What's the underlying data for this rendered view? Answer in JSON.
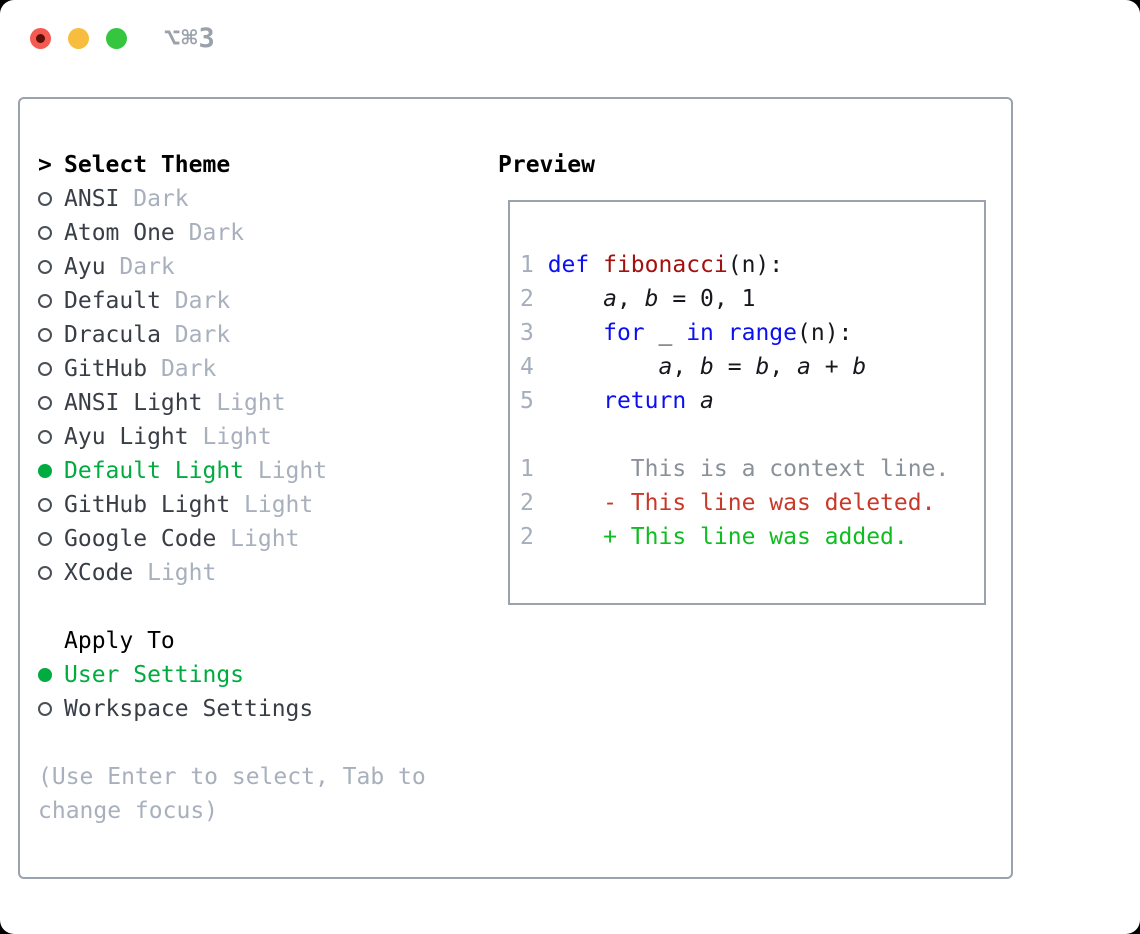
{
  "titlebar": {
    "shortcut": "⌥⌘3"
  },
  "theme_picker": {
    "title_prefix": ">",
    "title": "Select Theme",
    "themes": [
      {
        "name": "ANSI",
        "variant": "Dark",
        "selected": false
      },
      {
        "name": "Atom One",
        "variant": "Dark",
        "selected": false
      },
      {
        "name": "Ayu",
        "variant": "Dark",
        "selected": false
      },
      {
        "name": "Default",
        "variant": "Dark",
        "selected": false
      },
      {
        "name": "Dracula",
        "variant": "Dark",
        "selected": false
      },
      {
        "name": "GitHub",
        "variant": "Dark",
        "selected": false
      },
      {
        "name": "ANSI Light",
        "variant": "Light",
        "selected": false
      },
      {
        "name": "Ayu Light",
        "variant": "Light",
        "selected": false
      },
      {
        "name": "Default Light",
        "variant": "Light",
        "selected": true
      },
      {
        "name": "GitHub Light",
        "variant": "Light",
        "selected": false
      },
      {
        "name": "Google Code",
        "variant": "Light",
        "selected": false
      },
      {
        "name": "XCode",
        "variant": "Light",
        "selected": false
      }
    ],
    "apply_to": {
      "title": "Apply To",
      "options": [
        {
          "label": "User Settings",
          "selected": true
        },
        {
          "label": "Workspace Settings",
          "selected": false
        }
      ]
    },
    "hint_lines": [
      "(Use Enter to select, Tab to",
      "change focus)"
    ]
  },
  "preview": {
    "title": "Preview",
    "lines": [
      {
        "tokens": [
          [
            "1 ",
            "ln"
          ],
          [
            "def",
            "kw"
          ],
          [
            " ",
            "p"
          ],
          [
            "fibonacci",
            "fn"
          ],
          [
            "(n):",
            "p"
          ]
        ]
      },
      {
        "tokens": [
          [
            "2 ",
            "ln"
          ],
          [
            "    ",
            "p"
          ],
          [
            "a",
            "v"
          ],
          [
            ", ",
            "p"
          ],
          [
            "b",
            "v"
          ],
          [
            " = 0, 1",
            "p"
          ]
        ]
      },
      {
        "tokens": [
          [
            "3 ",
            "ln"
          ],
          [
            "    ",
            "p"
          ],
          [
            "for",
            "kw"
          ],
          [
            " _ ",
            "p"
          ],
          [
            "in",
            "kw"
          ],
          [
            " ",
            "p"
          ],
          [
            "range",
            "kw"
          ],
          [
            "(n):",
            "p"
          ]
        ]
      },
      {
        "tokens": [
          [
            "4 ",
            "ln"
          ],
          [
            "        ",
            "p"
          ],
          [
            "a",
            "v"
          ],
          [
            ", ",
            "p"
          ],
          [
            "b",
            "v"
          ],
          [
            " = ",
            "p"
          ],
          [
            "b",
            "v"
          ],
          [
            ", ",
            "p"
          ],
          [
            "a",
            "v"
          ],
          [
            " + ",
            "p"
          ],
          [
            "b",
            "v"
          ]
        ]
      },
      {
        "tokens": [
          [
            "5 ",
            "ln"
          ],
          [
            "    ",
            "p"
          ],
          [
            "return",
            "kw"
          ],
          [
            " ",
            "p"
          ],
          [
            "a",
            "v"
          ]
        ]
      },
      {
        "tokens": []
      },
      {
        "tokens": [
          [
            "1",
            "ln"
          ],
          [
            "       This is a context line.",
            "ctx"
          ]
        ]
      },
      {
        "tokens": [
          [
            "2",
            "ln"
          ],
          [
            "     ",
            "p"
          ],
          [
            "- This line was deleted.",
            "del"
          ]
        ]
      },
      {
        "tokens": [
          [
            "2",
            "ln"
          ],
          [
            "     ",
            "p"
          ],
          [
            "+ This line was added.",
            "add"
          ]
        ]
      }
    ]
  },
  "colors": {
    "accent_green": "#00ab40",
    "added_green": "#10bd21",
    "deleted_red": "#c9392a",
    "keyword_blue": "#0b10f0",
    "function_red": "#a31010",
    "muted_gray": "#a7b0bc",
    "context_gray": "#8b9199",
    "linenum_gray": "#a5aebb",
    "tl_red": "#f35a51",
    "tl_yellow": "#f6bd3e",
    "tl_green": "#35c53f"
  }
}
